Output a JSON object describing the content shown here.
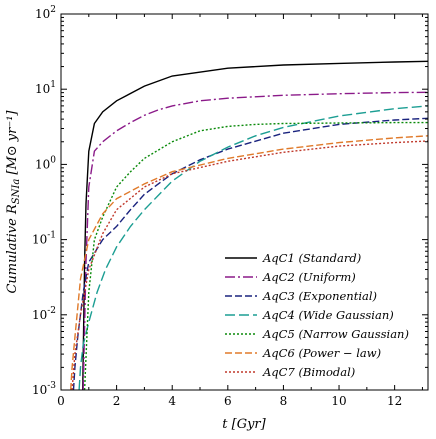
{
  "chart_data": {
    "type": "line",
    "title": "",
    "xlabel": "t [Gyr]",
    "ylabel": "Cumulative R_SNIa [M⊙ yr⁻¹]",
    "xlim": [
      0,
      13.2
    ],
    "ylim": [
      0.001,
      100
    ],
    "yscale": "log",
    "grid": false,
    "legend_position": "lower-right",
    "x_ticks": [
      0,
      2,
      4,
      6,
      8,
      10,
      12
    ],
    "x_tick_labels": [
      "0",
      "2",
      "4",
      "6",
      "8",
      "10",
      "12"
    ],
    "y_ticks": [
      0.001,
      0.01,
      0.1,
      1,
      10,
      100
    ],
    "y_tick_labels": [
      {
        "base": "10",
        "exp": "-3"
      },
      {
        "base": "10",
        "exp": "-2"
      },
      {
        "base": "10",
        "exp": "-1"
      },
      {
        "base": "10",
        "exp": "0"
      },
      {
        "base": "10",
        "exp": "1"
      },
      {
        "base": "10",
        "exp": "2"
      }
    ],
    "series": [
      {
        "name": "AqC1 (Standard)",
        "color": "#000000",
        "style": "solid",
        "x": [
          0.78,
          0.85,
          0.9,
          1.0,
          1.2,
          1.5,
          2.0,
          3.0,
          4.0,
          6.0,
          8.0,
          10.0,
          12.0,
          13.2
        ],
        "y": [
          0.001,
          0.05,
          0.3,
          1.5,
          3.5,
          5.0,
          7.0,
          11.0,
          15.0,
          19.0,
          21.0,
          22.0,
          23.0,
          23.5
        ]
      },
      {
        "name": "AqC2 (Uniform)",
        "color": "#8b1a89",
        "style": "dashdot",
        "x": [
          0.8,
          0.9,
          1.0,
          1.2,
          1.5,
          2.0,
          2.5,
          3.0,
          3.5,
          4.0,
          5.0,
          6.0,
          8.0,
          10.0,
          12.0,
          13.2
        ],
        "y": [
          0.001,
          0.05,
          0.5,
          1.5,
          2.0,
          2.8,
          3.6,
          4.5,
          5.3,
          6.0,
          7.0,
          7.6,
          8.3,
          8.7,
          9.0,
          9.1
        ]
      },
      {
        "name": "AqC3 (Exponential)",
        "color": "#1a237e",
        "style": "dashed",
        "x": [
          0.45,
          0.5,
          0.6,
          0.8,
          1.0,
          1.5,
          2.0,
          2.5,
          3.0,
          3.5,
          4.0,
          5.0,
          6.0,
          8.0,
          10.0,
          12.0,
          13.2
        ],
        "y": [
          0.001,
          0.002,
          0.005,
          0.02,
          0.05,
          0.1,
          0.15,
          0.25,
          0.4,
          0.55,
          0.75,
          1.15,
          1.6,
          2.6,
          3.4,
          3.9,
          4.1
        ]
      },
      {
        "name": "AqC4 (Wide Gaussian)",
        "color": "#1c9e93",
        "style": "dashed-long",
        "x": [
          0.65,
          0.7,
          0.8,
          1.0,
          1.3,
          1.6,
          2.0,
          2.5,
          3.0,
          4.0,
          5.0,
          6.0,
          7.0,
          8.0,
          10.0,
          12.0,
          13.2
        ],
        "y": [
          0.001,
          0.002,
          0.004,
          0.008,
          0.02,
          0.04,
          0.08,
          0.15,
          0.25,
          0.6,
          1.1,
          1.7,
          2.4,
          3.1,
          4.4,
          5.5,
          6.0
        ]
      },
      {
        "name": "AqC5 (Narrow Gaussian)",
        "color": "#0a8a0a",
        "style": "dotted",
        "x": [
          0.85,
          1.0,
          1.2,
          1.5,
          2.0,
          2.5,
          3.0,
          4.0,
          5.0,
          6.0,
          7.0,
          8.0,
          10.0,
          12.0,
          13.2
        ],
        "y": [
          0.001,
          0.02,
          0.1,
          0.2,
          0.5,
          0.8,
          1.2,
          2.0,
          2.8,
          3.2,
          3.4,
          3.5,
          3.55,
          3.6,
          3.6
        ]
      },
      {
        "name": "AqC6 (Power − law)",
        "color": "#e07a2a",
        "style": "dashed",
        "x": [
          0.35,
          0.4,
          0.5,
          0.7,
          1.0,
          1.5,
          2.0,
          3.0,
          4.0,
          6.0,
          8.0,
          10.0,
          12.0,
          13.2
        ],
        "y": [
          0.001,
          0.002,
          0.005,
          0.03,
          0.1,
          0.22,
          0.35,
          0.55,
          0.8,
          1.2,
          1.6,
          1.95,
          2.25,
          2.4
        ]
      },
      {
        "name": "AqC7 (Bimodal)",
        "color": "#c0392b",
        "style": "dotted",
        "x": [
          0.4,
          0.5,
          0.7,
          1.0,
          1.5,
          2.0,
          3.0,
          4.0,
          6.0,
          8.0,
          10.0,
          12.0,
          13.2
        ],
        "y": [
          0.001,
          0.003,
          0.01,
          0.04,
          0.12,
          0.25,
          0.5,
          0.75,
          1.1,
          1.45,
          1.75,
          1.95,
          2.05
        ]
      }
    ]
  }
}
